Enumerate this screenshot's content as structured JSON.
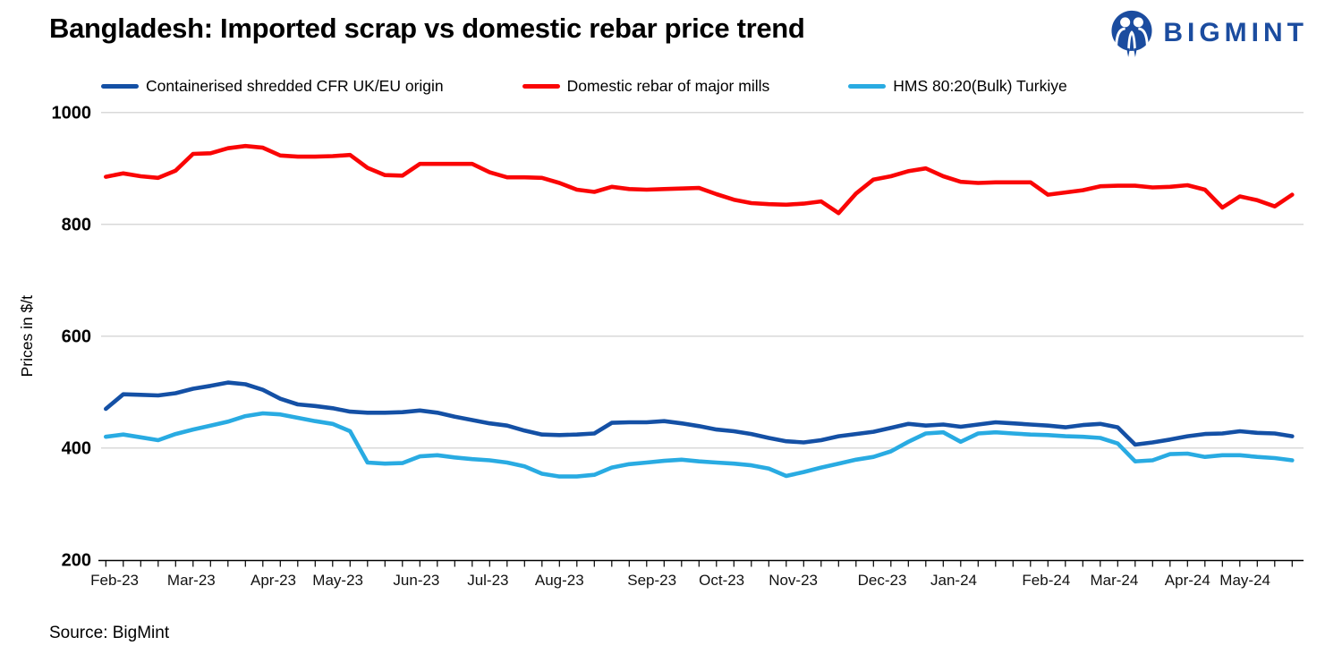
{
  "header": {
    "title": "Bangladesh: Imported scrap vs domestic rebar price trend",
    "brand": "BIGMINT",
    "brand_color": "#1B4C9F"
  },
  "legend": [
    {
      "label": "Containerised shredded CFR UK/EU origin",
      "color": "#1450A5"
    },
    {
      "label": "Domestic rebar of major mills",
      "color": "#FA0505"
    },
    {
      "label": "HMS 80:20(Bulk) Turkiye",
      "color": "#29ABE2"
    }
  ],
  "source": "Source: BigMint",
  "chart_data": {
    "type": "line",
    "title": "Bangladesh: Imported scrap vs domestic rebar price trend",
    "xlabel": "",
    "ylabel": "Prices in $/t",
    "ylim": [
      200,
      1000
    ],
    "y_ticks": [
      1000,
      800,
      600,
      400,
      200
    ],
    "grid": "horizontal",
    "legend_position": "top",
    "x_unit": "weekly observations, Feb-2023 to May-2024",
    "months": [
      {
        "label": "Feb-23",
        "week": 0.5
      },
      {
        "label": "Mar-23",
        "week": 4.9
      },
      {
        "label": "Apr-23",
        "week": 9.6
      },
      {
        "label": "May-23",
        "week": 13.3
      },
      {
        "label": "Jun-23",
        "week": 17.8
      },
      {
        "label": "Jul-23",
        "week": 21.9
      },
      {
        "label": "Aug-23",
        "week": 26.0
      },
      {
        "label": "Sep-23",
        "week": 31.3
      },
      {
        "label": "Oct-23",
        "week": 35.3
      },
      {
        "label": "Nov-23",
        "week": 39.4
      },
      {
        "label": "Dec-23",
        "week": 44.5
      },
      {
        "label": "Jan-24",
        "week": 48.6
      },
      {
        "label": "Feb-24",
        "week": 53.9
      },
      {
        "label": "Mar-24",
        "week": 57.8
      },
      {
        "label": "Apr-24",
        "week": 62.0
      },
      {
        "label": "May-24",
        "week": 65.3
      }
    ],
    "series": [
      {
        "name": "Containerised shredded CFR UK/EU origin",
        "color": "#1450A5",
        "values": [
          470,
          496,
          495,
          494,
          498,
          506,
          511,
          517,
          514,
          504,
          488,
          478,
          475,
          471,
          465,
          463,
          463,
          464,
          467,
          463,
          456,
          450,
          444,
          440,
          431,
          424,
          423,
          424,
          426,
          445,
          446,
          446,
          448,
          444,
          439,
          433,
          430,
          425,
          418,
          412,
          410,
          414,
          421,
          425,
          429,
          436,
          443,
          440,
          442,
          438,
          442,
          446,
          444,
          442,
          440,
          437,
          441,
          443,
          437,
          406,
          410,
          415,
          421,
          425,
          426,
          430,
          427,
          426,
          421
        ]
      },
      {
        "name": "Domestic rebar of major mills",
        "color": "#FA0505",
        "values": [
          885,
          891,
          886,
          883,
          896,
          926,
          927,
          936,
          940,
          937,
          923,
          921,
          921,
          922,
          924,
          901,
          888,
          887,
          908,
          908,
          908,
          908,
          893,
          884,
          884,
          883,
          874,
          862,
          858,
          867,
          863,
          862,
          863,
          864,
          865,
          854,
          844,
          838,
          836,
          835,
          837,
          841,
          820,
          855,
          880,
          886,
          895,
          900,
          886,
          876,
          874,
          875,
          875,
          875,
          853,
          857,
          861,
          868,
          869,
          869,
          866,
          867,
          870,
          862,
          830,
          850,
          843,
          832,
          853
        ]
      },
      {
        "name": "HMS 80:20(Bulk) Turkiye",
        "color": "#29ABE2",
        "values": [
          420,
          424,
          419,
          414,
          425,
          433,
          440,
          447,
          457,
          462,
          460,
          454,
          448,
          443,
          430,
          374,
          372,
          373,
          385,
          387,
          383,
          380,
          378,
          374,
          367,
          354,
          349,
          349,
          352,
          365,
          371,
          374,
          377,
          379,
          376,
          374,
          372,
          369,
          363,
          350,
          357,
          365,
          372,
          379,
          384,
          394,
          411,
          426,
          428,
          411,
          426,
          428,
          426,
          424,
          423,
          421,
          420,
          418,
          408,
          376,
          378,
          389,
          390,
          384,
          387,
          387,
          384,
          382,
          378
        ]
      }
    ]
  }
}
